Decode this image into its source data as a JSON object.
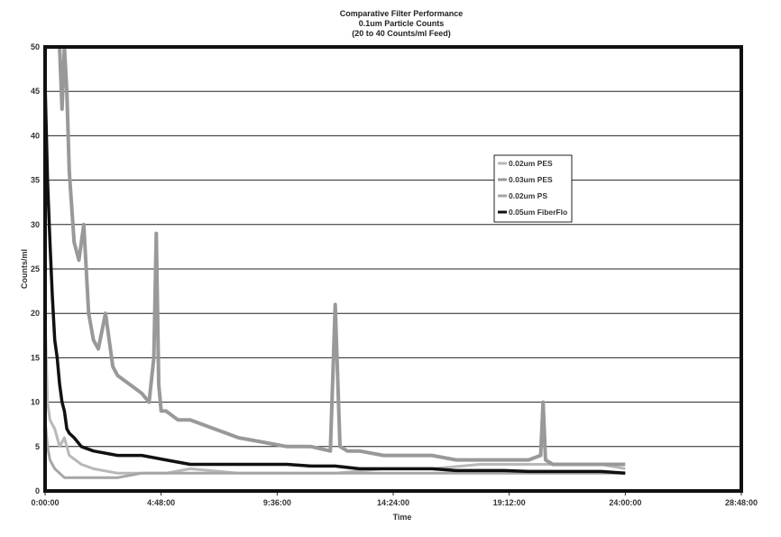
{
  "chart_data": {
    "type": "line",
    "title": "Comparative Filter Performance",
    "subtitle_line1": "0.1um Particle Counts",
    "subtitle_line2": "(20 to 40 Counts/ml Feed)",
    "xlabel": "Time",
    "ylabel": "Counts/ml",
    "xlim_hours": [
      0,
      28.8
    ],
    "ylim": [
      0,
      50
    ],
    "x_ticks": [
      "0:00:00",
      "4:48:00",
      "9:36:00",
      "14:24:00",
      "19:12:00",
      "24:00:00",
      "28:48:00"
    ],
    "y_ticks": [
      0,
      5,
      10,
      15,
      20,
      25,
      30,
      35,
      40,
      45,
      50
    ],
    "grid": "horizontal",
    "legend_position": "center-right",
    "series": [
      {
        "name": "0.02um PES",
        "color": "#b8b8b8",
        "x": [
          0,
          0.1,
          0.2,
          0.4,
          0.6,
          0.8,
          1.0,
          1.5,
          2.0,
          3.0,
          4.0,
          5.0,
          6.0,
          8.0,
          10.0,
          12.0,
          14.0,
          16.0,
          18.0,
          20.0,
          22.0,
          23.0,
          24.0
        ],
        "y": [
          20,
          10,
          8,
          7,
          5,
          6,
          4,
          3,
          2.5,
          2,
          2,
          2,
          2.5,
          2,
          2,
          2,
          2.5,
          2.5,
          3,
          3,
          3,
          3,
          2.5
        ]
      },
      {
        "name": "0.03um PES",
        "color": "#999999",
        "x": [
          0.6,
          0.7,
          0.8,
          0.9,
          1.0,
          1.2,
          1.4,
          1.6,
          1.8,
          2.0,
          2.2,
          2.5,
          2.8,
          3.0,
          3.5,
          4.0,
          4.3,
          4.5,
          4.6,
          4.7,
          4.8,
          5.0,
          5.5,
          6.0,
          7.0,
          8.0,
          9.0,
          10.0,
          11.0,
          11.8,
          12.0,
          12.2,
          12.5,
          13.0,
          14.0,
          15.0,
          16.0,
          17.0,
          18.0,
          19.0,
          20.0,
          20.5,
          20.6,
          20.7,
          21.0,
          22.0,
          23.0,
          24.0
        ],
        "y": [
          50,
          43,
          50,
          45,
          36,
          28,
          26,
          30,
          20,
          17,
          16,
          20,
          14,
          13,
          12,
          11,
          10,
          15,
          29,
          12,
          9,
          9,
          8,
          8,
          7,
          6,
          5.5,
          5,
          5,
          4.5,
          21,
          5,
          4.5,
          4.5,
          4,
          4,
          4,
          3.5,
          3.5,
          3.5,
          3.5,
          4,
          10,
          3.5,
          3,
          3,
          3,
          3
        ]
      },
      {
        "name": "0.02um PS",
        "color": "#a6a6a6",
        "x": [
          0,
          0.1,
          0.2,
          0.4,
          0.6,
          0.8,
          1.0,
          1.5,
          2.0,
          3.0,
          4.0,
          5.0,
          6.0,
          8.0,
          10.0,
          12.0,
          14.0,
          16.0,
          18.0,
          20.0,
          22.0,
          23.0,
          24.0
        ],
        "y": [
          8,
          5,
          3.5,
          2.5,
          2,
          1.5,
          1.5,
          1.5,
          1.5,
          1.5,
          2,
          2,
          2,
          2,
          2,
          2,
          2,
          2,
          2,
          2,
          2,
          2,
          2
        ]
      },
      {
        "name": "0.05um FiberFlo",
        "color": "#111111",
        "x": [
          0,
          0.1,
          0.2,
          0.3,
          0.4,
          0.5,
          0.6,
          0.7,
          0.8,
          0.9,
          1.0,
          1.2,
          1.5,
          2.0,
          3.0,
          4.0,
          5.0,
          6.0,
          7.0,
          8.0,
          9.0,
          10.0,
          11.0,
          12.0,
          13.0,
          14.0,
          15.0,
          16.0,
          17.0,
          18.0,
          19.0,
          20.0,
          21.0,
          22.0,
          23.0,
          24.0
        ],
        "y": [
          46,
          35,
          28,
          22,
          17,
          15,
          12,
          10,
          9,
          7,
          6.5,
          6,
          5,
          4.5,
          4,
          4,
          3.5,
          3,
          3,
          3,
          3,
          3,
          2.8,
          2.8,
          2.5,
          2.5,
          2.5,
          2.5,
          2.3,
          2.3,
          2.3,
          2.2,
          2.2,
          2.2,
          2.2,
          2
        ]
      }
    ]
  }
}
